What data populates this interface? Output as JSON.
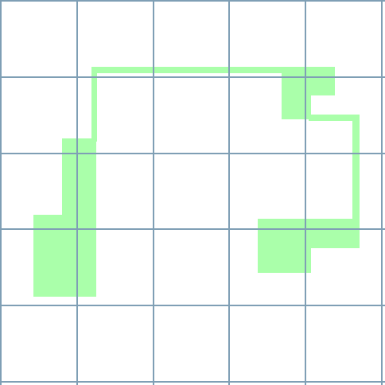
{
  "board": {
    "columns": 5,
    "rows": 5,
    "background_color": "#ffffff",
    "grid_color": "#7f9fb5",
    "path_color": "#aaffaa"
  }
}
